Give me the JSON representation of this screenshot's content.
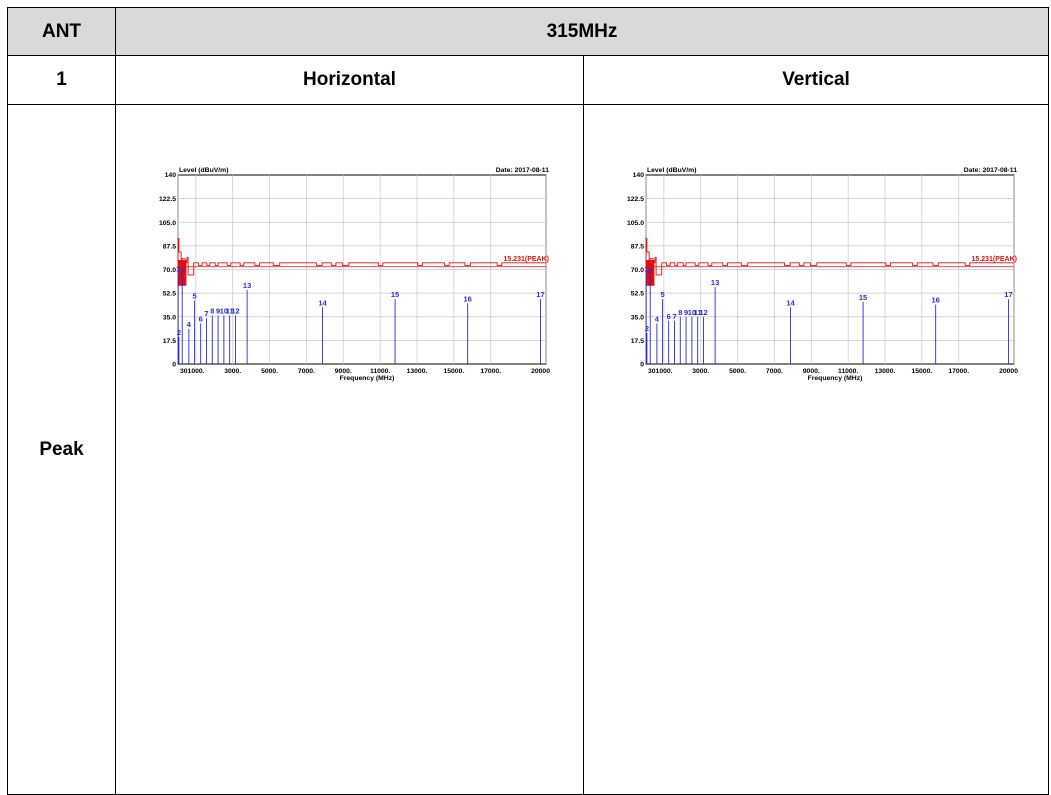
{
  "header": {
    "ant_label": "ANT",
    "frequency": "315MHz"
  },
  "row1": {
    "index": "1",
    "horizontal": "Horizontal",
    "vertical": "Vertical"
  },
  "row2": {
    "mode": "Peak"
  },
  "colors": {
    "header_bg": "#d9d9d9",
    "limit_line": "#e01010",
    "emission": "#2a2ad6",
    "grid": "#c8c8c8"
  },
  "plots": [
    {
      "polarization": "Horizontal",
      "chart_data": {
        "type": "line",
        "title": "",
        "ylabel": "Level (dBuV/m)",
        "xlabel": "Frequency (MHz)",
        "date_text": "Date: 2017-08-11",
        "limit_text": "15.231(PEAK)",
        "ylim": [
          0,
          140
        ],
        "xlim": [
          30,
          20000
        ],
        "y_ticks": [
          "0",
          "17.5",
          "35.0",
          "52.5",
          "70.0",
          "87.5",
          "105.0",
          "122.5",
          "140"
        ],
        "x_ticks": [
          "301000.",
          "3000.",
          "5000.",
          "7000.",
          "9000.",
          "11000.",
          "13000.",
          "15000.",
          "17000.",
          "20000"
        ],
        "limit_base": 75,
        "emissions": [
          {
            "label": "1",
            "x": 40,
            "y": 67
          },
          {
            "label": "2",
            "x": 80,
            "y": 20
          },
          {
            "label": "3",
            "x": 260,
            "y": 66
          },
          {
            "label": "4",
            "x": 620,
            "y": 26
          },
          {
            "label": "5",
            "x": 930,
            "y": 47
          },
          {
            "label": "6",
            "x": 1260,
            "y": 30
          },
          {
            "label": "7",
            "x": 1575,
            "y": 34
          },
          {
            "label": "8",
            "x": 1890,
            "y": 36
          },
          {
            "label": "9",
            "x": 2205,
            "y": 36
          },
          {
            "label": "10",
            "x": 2520,
            "y": 36
          },
          {
            "label": "11",
            "x": 2835,
            "y": 36
          },
          {
            "label": "12",
            "x": 3150,
            "y": 36
          },
          {
            "label": "13",
            "x": 3780,
            "y": 55
          },
          {
            "label": "14",
            "x": 7875,
            "y": 42
          },
          {
            "label": "15",
            "x": 11810,
            "y": 48
          },
          {
            "label": "16",
            "x": 15750,
            "y": 45
          },
          {
            "label": "17",
            "x": 19700,
            "y": 48
          }
        ]
      }
    },
    {
      "polarization": "Vertical",
      "chart_data": {
        "type": "line",
        "title": "",
        "ylabel": "Level (dBuV/m)",
        "xlabel": "Frequency (MHz)",
        "date_text": "Date: 2017-08-11",
        "limit_text": "15.231(PEAK)",
        "ylim": [
          0,
          140
        ],
        "xlim": [
          30,
          20000
        ],
        "y_ticks": [
          "0",
          "17.5",
          "35.0",
          "52.5",
          "70.0",
          "87.5",
          "105.0",
          "122.5",
          "140"
        ],
        "x_ticks": [
          "301000.",
          "3000.",
          "5000.",
          "7000.",
          "9000.",
          "11000.",
          "13000.",
          "15000.",
          "17000.",
          "20000"
        ],
        "limit_base": 75,
        "emissions": [
          {
            "label": "1",
            "x": 40,
            "y": 67
          },
          {
            "label": "2",
            "x": 80,
            "y": 23
          },
          {
            "label": "3",
            "x": 260,
            "y": 66
          },
          {
            "label": "4",
            "x": 620,
            "y": 30
          },
          {
            "label": "5",
            "x": 930,
            "y": 48
          },
          {
            "label": "6",
            "x": 1260,
            "y": 32
          },
          {
            "label": "7",
            "x": 1575,
            "y": 32
          },
          {
            "label": "8",
            "x": 1890,
            "y": 35
          },
          {
            "label": "9",
            "x": 2205,
            "y": 35
          },
          {
            "label": "10",
            "x": 2520,
            "y": 35
          },
          {
            "label": "11",
            "x": 2835,
            "y": 35
          },
          {
            "label": "12",
            "x": 3150,
            "y": 35
          },
          {
            "label": "13",
            "x": 3780,
            "y": 57
          },
          {
            "label": "14",
            "x": 7875,
            "y": 42
          },
          {
            "label": "15",
            "x": 11810,
            "y": 46
          },
          {
            "label": "16",
            "x": 15750,
            "y": 44
          },
          {
            "label": "17",
            "x": 19700,
            "y": 48
          }
        ]
      }
    }
  ]
}
